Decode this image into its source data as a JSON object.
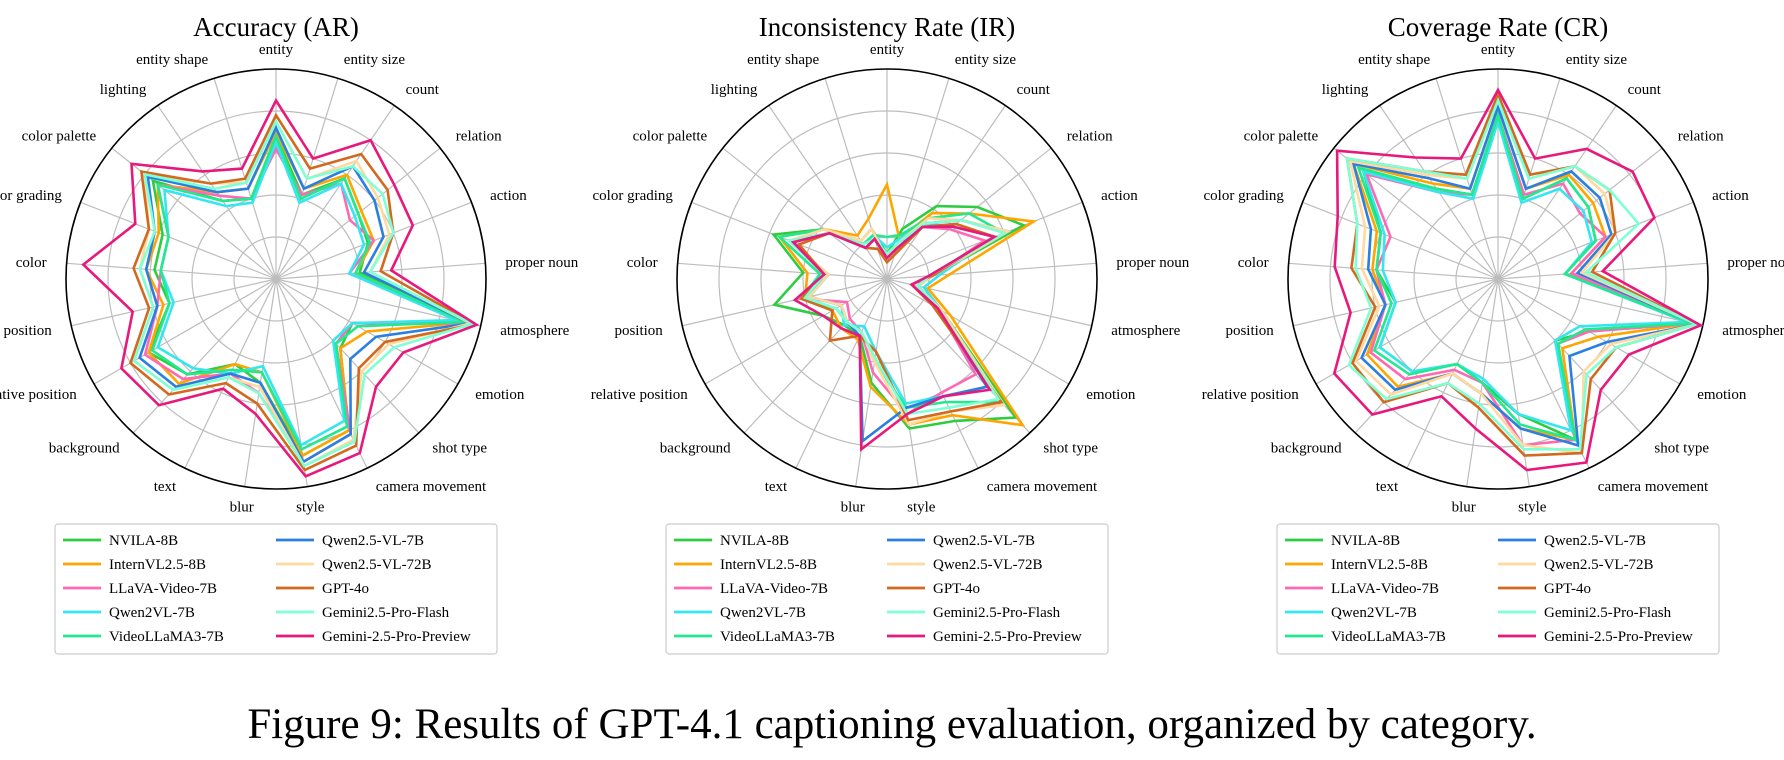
{
  "figure_caption": "Figure 9: Results of GPT-4.1 captioning evaluation, organized by category.",
  "chart_data": [
    {
      "type": "radar",
      "title": "Accuracy (AR)",
      "categories": [
        "entity",
        "entity size",
        "count",
        "relation",
        "action",
        "proper noun",
        "atmosphere",
        "emotion",
        "shot type",
        "camera movement",
        "style",
        "blur",
        "text",
        "background",
        "relative position",
        "position",
        "color",
        "color grading",
        "color palette",
        "lighting",
        "entity shape"
      ],
      "rlim": [
        0,
        1
      ],
      "grid": true,
      "series": [
        {
          "name": "NVILA-8B",
          "color": "#2ecc40",
          "values": [
            0.68,
            0.42,
            0.58,
            0.5,
            0.47,
            0.4,
            0.92,
            0.42,
            0.45,
            0.8,
            0.85,
            0.5,
            0.45,
            0.62,
            0.7,
            0.52,
            0.58,
            0.58,
            0.75,
            0.45,
            0.4
          ]
        },
        {
          "name": "InternVL2.5-8B",
          "color": "#ffa500",
          "values": [
            0.7,
            0.45,
            0.6,
            0.52,
            0.5,
            0.38,
            0.93,
            0.5,
            0.45,
            0.8,
            0.85,
            0.45,
            0.45,
            0.68,
            0.7,
            0.55,
            0.62,
            0.6,
            0.72,
            0.5,
            0.45
          ]
        },
        {
          "name": "LLaVA-Video-7B",
          "color": "#ff69b4",
          "values": [
            0.62,
            0.42,
            0.55,
            0.45,
            0.5,
            0.35,
            0.95,
            0.42,
            0.42,
            0.82,
            0.88,
            0.55,
            0.5,
            0.65,
            0.72,
            0.58,
            0.55,
            0.55,
            0.72,
            0.48,
            0.4
          ]
        },
        {
          "name": "Qwen2VL-7B",
          "color": "#33e6f0",
          "values": [
            0.65,
            0.38,
            0.55,
            0.48,
            0.45,
            0.35,
            0.88,
            0.42,
            0.4,
            0.75,
            0.8,
            0.42,
            0.5,
            0.58,
            0.65,
            0.5,
            0.55,
            0.55,
            0.68,
            0.42,
            0.38
          ]
        },
        {
          "name": "VideoLLaMA3-7B",
          "color": "#22e890",
          "values": [
            0.68,
            0.4,
            0.58,
            0.5,
            0.48,
            0.38,
            0.92,
            0.45,
            0.42,
            0.78,
            0.82,
            0.45,
            0.48,
            0.62,
            0.68,
            0.52,
            0.55,
            0.55,
            0.72,
            0.45,
            0.4
          ]
        },
        {
          "name": "Qwen2.5-VL-7B",
          "color": "#2b7fe0",
          "values": [
            0.72,
            0.45,
            0.65,
            0.6,
            0.55,
            0.42,
            0.95,
            0.55,
            0.52,
            0.82,
            0.88,
            0.5,
            0.5,
            0.7,
            0.75,
            0.58,
            0.62,
            0.62,
            0.78,
            0.5,
            0.45
          ]
        },
        {
          "name": "Qwen2.5-VL-72B",
          "color": "#ffd9a0",
          "values": [
            0.75,
            0.5,
            0.68,
            0.62,
            0.58,
            0.45,
            0.95,
            0.62,
            0.6,
            0.85,
            0.9,
            0.52,
            0.52,
            0.72,
            0.78,
            0.6,
            0.65,
            0.65,
            0.8,
            0.55,
            0.48
          ]
        },
        {
          "name": "GPT-4o",
          "color": "#d2691e",
          "values": [
            0.78,
            0.55,
            0.72,
            0.68,
            0.6,
            0.5,
            0.97,
            0.6,
            0.58,
            0.88,
            0.92,
            0.6,
            0.55,
            0.75,
            0.8,
            0.62,
            0.68,
            0.65,
            0.82,
            0.55,
            0.5
          ]
        },
        {
          "name": "Gemini2.5-Pro-Flash",
          "color": "#7fffd4",
          "values": [
            0.75,
            0.5,
            0.65,
            0.65,
            0.6,
            0.45,
            0.96,
            0.65,
            0.62,
            0.86,
            0.9,
            0.55,
            0.52,
            0.72,
            0.78,
            0.6,
            0.65,
            0.62,
            0.8,
            0.52,
            0.48
          ]
        },
        {
          "name": "Gemini-2.5-Pro-Preview",
          "color": "#e8197c",
          "values": [
            0.85,
            0.6,
            0.8,
            0.72,
            0.7,
            0.55,
            0.98,
            0.7,
            0.7,
            0.92,
            0.95,
            0.65,
            0.58,
            0.82,
            0.85,
            0.7,
            0.92,
            0.72,
            0.88,
            0.62,
            0.55
          ]
        }
      ],
      "legend": "bottom"
    },
    {
      "type": "radar",
      "title": "Inconsistency Rate (IR)",
      "categories": [
        "entity",
        "entity size",
        "count",
        "relation",
        "action",
        "proper noun",
        "atmosphere",
        "emotion",
        "shot type",
        "camera movement",
        "style",
        "blur",
        "text",
        "background",
        "relative position",
        "position",
        "color",
        "color grading",
        "color palette",
        "lighting",
        "entity shape"
      ],
      "rlim": [
        0,
        1
      ],
      "grid": true,
      "series": [
        {
          "name": "NVILA-8B",
          "color": "#2ecc40",
          "values": [
            0.12,
            0.25,
            0.42,
            0.55,
            0.7,
            0.22,
            0.15,
            0.3,
            0.9,
            0.75,
            0.72,
            0.5,
            0.3,
            0.3,
            0.35,
            0.55,
            0.4,
            0.58,
            0.38,
            0.22,
            0.25
          ]
        },
        {
          "name": "InternVL2.5-8B",
          "color": "#ffa500",
          "values": [
            0.45,
            0.2,
            0.38,
            0.5,
            0.75,
            0.3,
            0.2,
            0.35,
            0.95,
            0.72,
            0.7,
            0.52,
            0.32,
            0.32,
            0.3,
            0.4,
            0.38,
            0.55,
            0.38,
            0.25,
            0.3
          ]
        },
        {
          "name": "LLaVA-Video-7B",
          "color": "#ff69b4",
          "values": [
            0.1,
            0.15,
            0.3,
            0.38,
            0.5,
            0.22,
            0.15,
            0.28,
            0.62,
            0.6,
            0.65,
            0.45,
            0.28,
            0.26,
            0.22,
            0.42,
            0.3,
            0.48,
            0.35,
            0.18,
            0.2
          ]
        },
        {
          "name": "Qwen2VL-7B",
          "color": "#33e6f0",
          "values": [
            0.15,
            0.2,
            0.32,
            0.4,
            0.55,
            0.25,
            0.18,
            0.3,
            0.7,
            0.62,
            0.6,
            0.35,
            0.25,
            0.3,
            0.25,
            0.38,
            0.3,
            0.5,
            0.35,
            0.2,
            0.22
          ]
        },
        {
          "name": "VideoLLaMA3-7B",
          "color": "#22e890",
          "values": [
            0.2,
            0.22,
            0.35,
            0.5,
            0.6,
            0.2,
            0.15,
            0.3,
            0.8,
            0.65,
            0.62,
            0.4,
            0.28,
            0.28,
            0.28,
            0.42,
            0.32,
            0.55,
            0.38,
            0.2,
            0.22
          ]
        },
        {
          "name": "Qwen2.5-VL-7B",
          "color": "#2b7fe0",
          "values": [
            0.1,
            0.15,
            0.32,
            0.45,
            0.62,
            0.2,
            0.15,
            0.28,
            0.7,
            0.62,
            0.62,
            0.78,
            0.3,
            0.28,
            0.25,
            0.38,
            0.28,
            0.5,
            0.35,
            0.18,
            0.2
          ]
        },
        {
          "name": "Qwen2.5-VL-72B",
          "color": "#ffd9a0",
          "values": [
            0.1,
            0.18,
            0.35,
            0.45,
            0.62,
            0.22,
            0.15,
            0.3,
            0.82,
            0.7,
            0.7,
            0.4,
            0.28,
            0.28,
            0.25,
            0.38,
            0.28,
            0.5,
            0.38,
            0.22,
            0.25
          ]
        },
        {
          "name": "GPT-4o",
          "color": "#d2691e",
          "values": [
            0.08,
            0.12,
            0.3,
            0.42,
            0.55,
            0.22,
            0.12,
            0.25,
            0.8,
            0.7,
            0.68,
            0.35,
            0.3,
            0.4,
            0.3,
            0.42,
            0.3,
            0.45,
            0.35,
            0.18,
            0.15
          ]
        },
        {
          "name": "Gemini2.5-Pro-Flash",
          "color": "#7fffd4",
          "values": [
            0.12,
            0.18,
            0.32,
            0.45,
            0.6,
            0.2,
            0.15,
            0.28,
            0.78,
            0.68,
            0.65,
            0.38,
            0.28,
            0.28,
            0.28,
            0.4,
            0.3,
            0.5,
            0.35,
            0.2,
            0.2
          ]
        },
        {
          "name": "Gemini-2.5-Pro-Preview",
          "color": "#e8197c",
          "values": [
            0.1,
            0.15,
            0.3,
            0.4,
            0.55,
            0.2,
            0.12,
            0.28,
            0.72,
            0.62,
            0.65,
            0.82,
            0.3,
            0.32,
            0.35,
            0.45,
            0.3,
            0.48,
            0.35,
            0.18,
            0.2
          ]
        }
      ],
      "legend": "bottom"
    },
    {
      "type": "radar",
      "title": "Coverage Rate (CR)",
      "categories": [
        "entity",
        "entity size",
        "count",
        "relation",
        "action",
        "proper noun",
        "atmosphere",
        "emotion",
        "shot type",
        "camera movement",
        "style",
        "blur",
        "text",
        "background",
        "relative position",
        "position",
        "color",
        "color grading",
        "color palette",
        "lighting",
        "entity shape"
      ],
      "rlim": [
        0,
        1
      ],
      "grid": true,
      "series": [
        {
          "name": "NVILA-8B",
          "color": "#2ecc40",
          "values": [
            0.78,
            0.4,
            0.58,
            0.55,
            0.5,
            0.32,
            0.95,
            0.5,
            0.4,
            0.85,
            0.65,
            0.5,
            0.45,
            0.6,
            0.65,
            0.5,
            0.58,
            0.6,
            0.82,
            0.52,
            0.42
          ]
        },
        {
          "name": "InternVL2.5-8B",
          "color": "#ffa500",
          "values": [
            0.82,
            0.45,
            0.6,
            0.58,
            0.55,
            0.35,
            0.95,
            0.55,
            0.45,
            0.85,
            0.72,
            0.55,
            0.5,
            0.7,
            0.72,
            0.55,
            0.6,
            0.62,
            0.88,
            0.55,
            0.45
          ]
        },
        {
          "name": "LLaVA-Video-7B",
          "color": "#ff69b4",
          "values": [
            0.78,
            0.42,
            0.55,
            0.5,
            0.55,
            0.35,
            0.95,
            0.5,
            0.42,
            0.85,
            0.8,
            0.5,
            0.48,
            0.65,
            0.7,
            0.55,
            0.58,
            0.55,
            0.8,
            0.5,
            0.42
          ]
        },
        {
          "name": "Qwen2VL-7B",
          "color": "#33e6f0",
          "values": [
            0.75,
            0.38,
            0.52,
            0.52,
            0.48,
            0.32,
            0.92,
            0.45,
            0.4,
            0.8,
            0.65,
            0.48,
            0.45,
            0.6,
            0.65,
            0.5,
            0.55,
            0.58,
            0.82,
            0.5,
            0.4
          ]
        },
        {
          "name": "VideoLLaMA3-7B",
          "color": "#22e890",
          "values": [
            0.78,
            0.4,
            0.58,
            0.55,
            0.5,
            0.32,
            0.95,
            0.48,
            0.42,
            0.85,
            0.7,
            0.5,
            0.45,
            0.62,
            0.68,
            0.52,
            0.58,
            0.6,
            0.85,
            0.52,
            0.42
          ]
        },
        {
          "name": "Qwen2.5-VL-7B",
          "color": "#2b7fe0",
          "values": [
            0.82,
            0.45,
            0.62,
            0.62,
            0.58,
            0.38,
            0.97,
            0.6,
            0.5,
            0.88,
            0.72,
            0.55,
            0.5,
            0.72,
            0.75,
            0.55,
            0.62,
            0.65,
            0.88,
            0.58,
            0.45
          ]
        },
        {
          "name": "Qwen2.5-VL-72B",
          "color": "#ffd9a0",
          "values": [
            0.85,
            0.5,
            0.65,
            0.65,
            0.6,
            0.4,
            0.97,
            0.62,
            0.6,
            0.92,
            0.8,
            0.55,
            0.5,
            0.75,
            0.78,
            0.58,
            0.65,
            0.68,
            0.9,
            0.6,
            0.5
          ]
        },
        {
          "name": "GPT-4o",
          "color": "#d2691e",
          "values": [
            0.88,
            0.52,
            0.65,
            0.68,
            0.6,
            0.45,
            0.97,
            0.65,
            0.65,
            0.92,
            0.85,
            0.62,
            0.55,
            0.8,
            0.8,
            0.6,
            0.7,
            0.72,
            0.92,
            0.62,
            0.52
          ]
        },
        {
          "name": "Gemini2.5-Pro-Flash",
          "color": "#7fffd4",
          "values": [
            0.85,
            0.5,
            0.65,
            0.68,
            0.72,
            0.42,
            0.97,
            0.65,
            0.62,
            0.9,
            0.82,
            0.6,
            0.55,
            0.78,
            0.82,
            0.62,
            0.68,
            0.72,
            0.92,
            0.62,
            0.5
          ]
        },
        {
          "name": "Gemini-2.5-Pro-Preview",
          "color": "#e8197c",
          "values": [
            0.9,
            0.6,
            0.75,
            0.82,
            0.8,
            0.5,
            0.99,
            0.72,
            0.72,
            0.97,
            0.92,
            0.72,
            0.62,
            0.88,
            0.9,
            0.72,
            0.78,
            0.82,
            0.98,
            0.7,
            0.6
          ]
        }
      ],
      "legend": "bottom"
    }
  ]
}
